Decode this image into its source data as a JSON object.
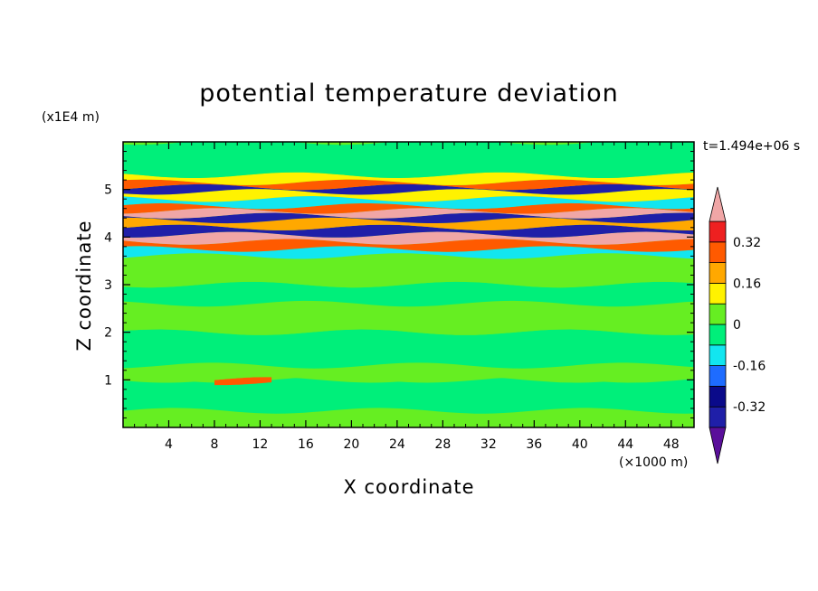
{
  "chart_data": {
    "type": "heatmap",
    "title": "potential temperature deviation",
    "xlabel": "X coordinate",
    "ylabel": "Z coordinate",
    "x_units": "(×1000 m)",
    "y_units": "(x1E4 m)",
    "time_label": "t=1.494e+06 s",
    "xlim": [
      0,
      50
    ],
    "ylim": [
      0,
      6
    ],
    "x_ticks": [
      4,
      8,
      12,
      16,
      20,
      24,
      28,
      32,
      36,
      40,
      44,
      48
    ],
    "y_ticks": [
      1,
      2,
      3,
      4,
      5
    ],
    "x_tick_labels": [
      "4",
      "8",
      "12",
      "16",
      "20",
      "24",
      "28",
      "32",
      "36",
      "40",
      "44",
      "48"
    ],
    "y_tick_labels": [
      "1",
      "2",
      "3",
      "4",
      "5"
    ],
    "colorbar": {
      "levels": [
        -0.4,
        -0.32,
        -0.24,
        -0.16,
        -0.08,
        0,
        0.08,
        0.16,
        0.24,
        0.32,
        0.4
      ],
      "labels": [
        "0.32",
        "0.16",
        "0",
        "-0.16",
        "-0.32"
      ],
      "label_values": [
        0.32,
        0.16,
        0,
        -0.16,
        -0.32
      ],
      "colors_low_to_high": [
        "#5a0f9a",
        "#1f1fa8",
        "#0a0a8a",
        "#1e6cff",
        "#12e6f0",
        "#00ef7a",
        "#66ee22",
        "#fff200",
        "#ffa800",
        "#ff5a00",
        "#ee2020",
        "#f0a6a6"
      ],
      "extend": "both"
    },
    "bands": [
      {
        "z": [
          0.0,
          0.35
        ],
        "value": 0.04
      },
      {
        "z": [
          0.35,
          1.0
        ],
        "value": -0.02
      },
      {
        "z": [
          0.95,
          1.0
        ],
        "value": 0.3,
        "x": [
          8,
          13
        ]
      },
      {
        "z": [
          1.0,
          1.3
        ],
        "value": 0.02
      },
      {
        "z": [
          1.3,
          2.0
        ],
        "value": -0.03
      },
      {
        "z": [
          2.0,
          2.6
        ],
        "value": 0.03
      },
      {
        "z": [
          2.6,
          3.0
        ],
        "value": -0.04
      },
      {
        "z": [
          3.0,
          3.6
        ],
        "value": 0.02
      },
      {
        "z": [
          3.6,
          3.75
        ],
        "value": -0.1
      },
      {
        "z": [
          3.75,
          3.9
        ],
        "value": 0.3
      },
      {
        "z": [
          3.9,
          4.05
        ],
        "value": 0.42
      },
      {
        "z": [
          4.05,
          4.2
        ],
        "value": -0.36
      },
      {
        "z": [
          4.2,
          4.35
        ],
        "value": 0.2
      },
      {
        "z": [
          4.35,
          4.45
        ],
        "value": -0.38
      },
      {
        "z": [
          4.45,
          4.55
        ],
        "value": 0.42
      },
      {
        "z": [
          4.55,
          4.65
        ],
        "value": 0.3
      },
      {
        "z": [
          4.65,
          4.8
        ],
        "value": -0.14
      },
      {
        "z": [
          4.8,
          4.95
        ],
        "value": 0.12
      },
      {
        "z": [
          4.95,
          5.05
        ],
        "value": -0.34
      },
      {
        "z": [
          5.05,
          5.15
        ],
        "value": 0.3
      },
      {
        "z": [
          5.15,
          5.3
        ],
        "value": 0.1
      },
      {
        "z": [
          5.3,
          6.0
        ],
        "value": -0.02
      }
    ]
  }
}
